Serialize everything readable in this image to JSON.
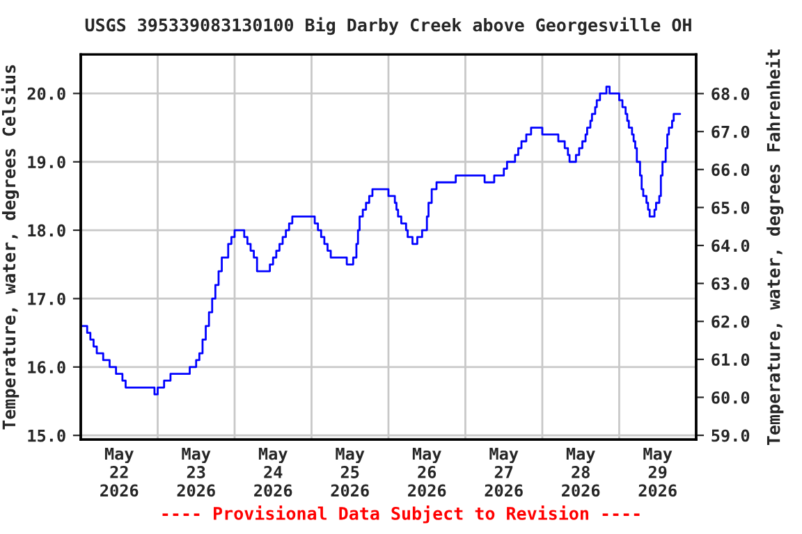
{
  "chart_data": {
    "type": "step",
    "title": "USGS 395339083130100 Big Darby Creek above Georgesville OH",
    "ylabel": "Temperature, water, degrees Celsius",
    "y2label": "Temperature, water, degrees Fahrenheit",
    "annotations": [
      "---- Provisional Data Subject to Revision ----"
    ],
    "xlim": [
      "2026-05-22T00:00",
      "2026-05-30T00:00"
    ],
    "xticks": [
      {
        "value": "2026-05-22T12:00",
        "label": "May\n22\n2026"
      },
      {
        "value": "2026-05-23T00:00",
        "label": null
      },
      {
        "value": "2026-05-23T12:00",
        "label": "May\n23\n2026"
      },
      {
        "value": "2026-05-24T00:00",
        "label": null
      },
      {
        "value": "2026-05-24T12:00",
        "label": "May\n24\n2026"
      },
      {
        "value": "2026-05-25T00:00",
        "label": null
      },
      {
        "value": "2026-05-25T12:00",
        "label": "May\n25\n2026"
      },
      {
        "value": "2026-05-26T00:00",
        "label": null
      },
      {
        "value": "2026-05-26T12:00",
        "label": "May\n26\n2026"
      },
      {
        "value": "2026-05-27T00:00",
        "label": null
      },
      {
        "value": "2026-05-27T12:00",
        "label": "May\n27\n2026"
      },
      {
        "value": "2026-05-28T00:00",
        "label": null
      },
      {
        "value": "2026-05-28T12:00",
        "label": "May\n28\n2026"
      },
      {
        "value": "2026-05-29T00:00",
        "label": null
      },
      {
        "value": "2026-05-29T12:00",
        "label": "May\n29\n2026"
      }
    ],
    "ylim": [
      14.94,
      20.57
    ],
    "yticks": [
      {
        "value": 15,
        "label": "15.0"
      },
      {
        "value": 16,
        "label": "16.0"
      },
      {
        "value": 17,
        "label": "17.0"
      },
      {
        "value": 18,
        "label": "18.0"
      },
      {
        "value": 19,
        "label": "19.0"
      },
      {
        "value": 20,
        "label": "20.0"
      }
    ],
    "y2lim": [
      58.89,
      69.03
    ],
    "y2ticks": [
      {
        "value": 59,
        "label": "59.0"
      },
      {
        "value": 60,
        "label": "60.0"
      },
      {
        "value": 61,
        "label": "61.0"
      },
      {
        "value": 62,
        "label": "62.0"
      },
      {
        "value": 63,
        "label": "63.0"
      },
      {
        "value": 64,
        "label": "64.0"
      },
      {
        "value": 65,
        "label": "65.0"
      },
      {
        "value": 66,
        "label": "66.0"
      },
      {
        "value": 67,
        "label": "67.0"
      },
      {
        "value": 68,
        "label": "68.0"
      }
    ],
    "grid": true,
    "legend": false,
    "marker": "none",
    "line_style": "solid",
    "series": [
      {
        "color": "#0000ff",
        "x": [
          "2026-05-22T00:00",
          "2026-05-22T02:00",
          "2026-05-22T03:00",
          "2026-05-22T04:00",
          "2026-05-22T05:00",
          "2026-05-22T07:00",
          "2026-05-22T09:00",
          "2026-05-22T11:00",
          "2026-05-22T13:00",
          "2026-05-22T14:00",
          "2026-05-22T23:00",
          "2026-05-23T00:00",
          "2026-05-23T02:00",
          "2026-05-23T04:00",
          "2026-05-23T10:00",
          "2026-05-23T12:00",
          "2026-05-23T13:00",
          "2026-05-23T14:00",
          "2026-05-23T15:00",
          "2026-05-23T16:00",
          "2026-05-23T17:00",
          "2026-05-23T18:00",
          "2026-05-23T19:00",
          "2026-05-23T20:00",
          "2026-05-23T22:00",
          "2026-05-23T23:00",
          "2026-05-24T00:00",
          "2026-05-24T03:00",
          "2026-05-24T04:00",
          "2026-05-24T05:00",
          "2026-05-24T06:00",
          "2026-05-24T07:00",
          "2026-05-24T11:00",
          "2026-05-24T12:00",
          "2026-05-24T13:00",
          "2026-05-24T14:00",
          "2026-05-24T15:00",
          "2026-05-24T16:00",
          "2026-05-24T17:00",
          "2026-05-24T18:00",
          "2026-05-25T01:00",
          "2026-05-25T02:00",
          "2026-05-25T03:00",
          "2026-05-25T04:00",
          "2026-05-25T05:00",
          "2026-05-25T06:00",
          "2026-05-25T11:00",
          "2026-05-25T13:00",
          "2026-05-25T14:00",
          "2026-05-25T14:30",
          "2026-05-25T15:00",
          "2026-05-25T16:00",
          "2026-05-25T17:00",
          "2026-05-25T18:00",
          "2026-05-25T19:00",
          "2026-05-26T00:00",
          "2026-05-26T02:00",
          "2026-05-26T02:30",
          "2026-05-26T03:00",
          "2026-05-26T04:00",
          "2026-05-26T05:30",
          "2026-05-26T06:00",
          "2026-05-26T07:30",
          "2026-05-26T09:00",
          "2026-05-26T10:30",
          "2026-05-26T12:00",
          "2026-05-26T12:30",
          "2026-05-26T13:30",
          "2026-05-26T15:00",
          "2026-05-26T21:00",
          "2026-05-27T06:00",
          "2026-05-27T09:00",
          "2026-05-27T12:00",
          "2026-05-27T13:00",
          "2026-05-27T15:30",
          "2026-05-27T16:30",
          "2026-05-27T17:30",
          "2026-05-27T19:00",
          "2026-05-27T20:30",
          "2026-05-28T00:00",
          "2026-05-28T05:00",
          "2026-05-28T07:00",
          "2026-05-28T08:00",
          "2026-05-28T08:30",
          "2026-05-28T10:30",
          "2026-05-28T11:30",
          "2026-05-28T12:30",
          "2026-05-28T13:30",
          "2026-05-28T14:00",
          "2026-05-28T15:00",
          "2026-05-28T15:30",
          "2026-05-28T16:30",
          "2026-05-28T17:00",
          "2026-05-28T18:00",
          "2026-05-28T20:00",
          "2026-05-28T21:00",
          "2026-05-29T00:00",
          "2026-05-29T01:00",
          "2026-05-29T02:00",
          "2026-05-29T02:30",
          "2026-05-29T03:00",
          "2026-05-29T04:00",
          "2026-05-29T04:30",
          "2026-05-29T05:00",
          "2026-05-29T05:30",
          "2026-05-29T06:30",
          "2026-05-29T07:00",
          "2026-05-29T07:30",
          "2026-05-29T08:30",
          "2026-05-29T09:00",
          "2026-05-29T09:30",
          "2026-05-29T11:00",
          "2026-05-29T11:30",
          "2026-05-29T12:30",
          "2026-05-29T13:00",
          "2026-05-29T13:30",
          "2026-05-29T14:30",
          "2026-05-29T15:00",
          "2026-05-29T15:30",
          "2026-05-29T16:30",
          "2026-05-29T17:00",
          "2026-05-29T19:00"
        ],
        "values": [
          16.6,
          16.5,
          16.4,
          16.3,
          16.2,
          16.1,
          16.0,
          15.9,
          15.8,
          15.7,
          15.6,
          15.7,
          15.8,
          15.9,
          16.0,
          16.1,
          16.2,
          16.4,
          16.6,
          16.8,
          17.0,
          17.2,
          17.4,
          17.6,
          17.8,
          17.9,
          18.0,
          17.9,
          17.8,
          17.7,
          17.6,
          17.4,
          17.5,
          17.6,
          17.7,
          17.8,
          17.9,
          18.0,
          18.1,
          18.2,
          18.1,
          18.0,
          17.9,
          17.8,
          17.7,
          17.6,
          17.5,
          17.6,
          17.8,
          18.0,
          18.2,
          18.3,
          18.4,
          18.5,
          18.6,
          18.5,
          18.4,
          18.3,
          18.2,
          18.1,
          18.0,
          17.9,
          17.8,
          17.9,
          18.0,
          18.2,
          18.4,
          18.6,
          18.7,
          18.8,
          18.7,
          18.8,
          18.9,
          19.0,
          19.1,
          19.2,
          19.3,
          19.4,
          19.5,
          19.4,
          19.3,
          19.2,
          19.1,
          19.0,
          19.1,
          19.2,
          19.3,
          19.4,
          19.5,
          19.6,
          19.7,
          19.8,
          19.9,
          20.0,
          20.1,
          20.0,
          19.9,
          19.8,
          19.7,
          19.6,
          19.5,
          19.4,
          19.3,
          19.2,
          19.0,
          18.8,
          18.6,
          18.5,
          18.4,
          18.3,
          18.2,
          18.3,
          18.4,
          18.5,
          18.8,
          19.0,
          19.2,
          19.4,
          19.5,
          19.6,
          19.7,
          19.7
        ]
      }
    ]
  }
}
